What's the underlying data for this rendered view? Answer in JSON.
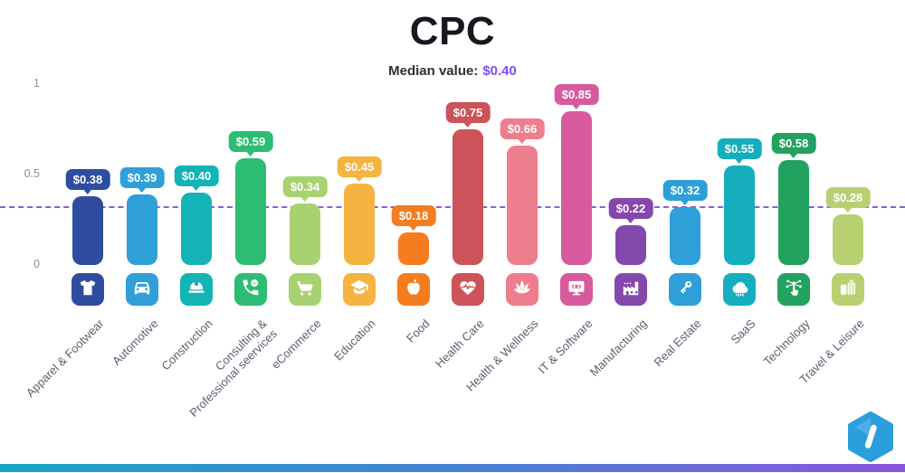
{
  "title": "CPC",
  "subtitle": {
    "label": "Median value:",
    "value": "$0.40"
  },
  "axis": {
    "ticks": [
      {
        "label": "1",
        "value": 1
      },
      {
        "label": "0.5",
        "value": 0.5
      },
      {
        "label": "0",
        "value": 0
      }
    ]
  },
  "median_line": {
    "color": "#8a5fd6",
    "value_label": "$0.40"
  },
  "chart_data": {
    "type": "bar",
    "title": "CPC",
    "subtitle": "Median value: $0.40",
    "median_value": 0.4,
    "ylim": [
      0,
      1
    ],
    "yticks": [
      0,
      0.5,
      1
    ],
    "grid": false,
    "legend": "none",
    "categories": [
      "Apparel & Footwear",
      "Automotive",
      "Construction",
      "Consulting &\nProfessional seervices",
      "eCommerce",
      "Education",
      "Food",
      "Health Care",
      "Health & Wellness",
      "IT & Software",
      "Manufacturing",
      "Real Estate",
      "SaaS",
      "Technology",
      "Travel & Leisure"
    ],
    "values": [
      0.38,
      0.39,
      0.4,
      0.59,
      0.34,
      0.45,
      0.18,
      0.75,
      0.66,
      0.85,
      0.22,
      0.32,
      0.55,
      0.58,
      0.28
    ],
    "value_labels": [
      "$0.38",
      "$0.39",
      "$0.40",
      "$0.59",
      "$0.34",
      "$0.45",
      "$0.18",
      "$0.75",
      "$0.66",
      "$0.85",
      "$0.22",
      "$0.32",
      "$0.55",
      "$0.58",
      "$0.28"
    ],
    "colors": [
      "#2F4DA0",
      "#2E9FD9",
      "#13B3B6",
      "#2DBD72",
      "#A8D272",
      "#F5B33F",
      "#F57C1F",
      "#CC5359",
      "#EE7E8D",
      "#D85A9E",
      "#8448AD",
      "#2E9FD9",
      "#16AEBC",
      "#23A25F",
      "#B8D072"
    ],
    "icons": [
      "tshirt-icon",
      "car-icon",
      "hardhat-icon",
      "phone-chat-icon",
      "cart-icon",
      "graduation-cap-icon",
      "apple-icon",
      "heart-pulse-icon",
      "lotus-icon",
      "monitor-code-icon",
      "factory-icon",
      "key-icon",
      "cloud-icon",
      "touch-network-icon",
      "luggage-icon"
    ]
  },
  "footer": {
    "gradient_left": "#18a6c6",
    "gradient_right": "#8a55de"
  },
  "logo": {
    "icon": "hexagon-pen-logo",
    "color": "#2B9FDD"
  }
}
